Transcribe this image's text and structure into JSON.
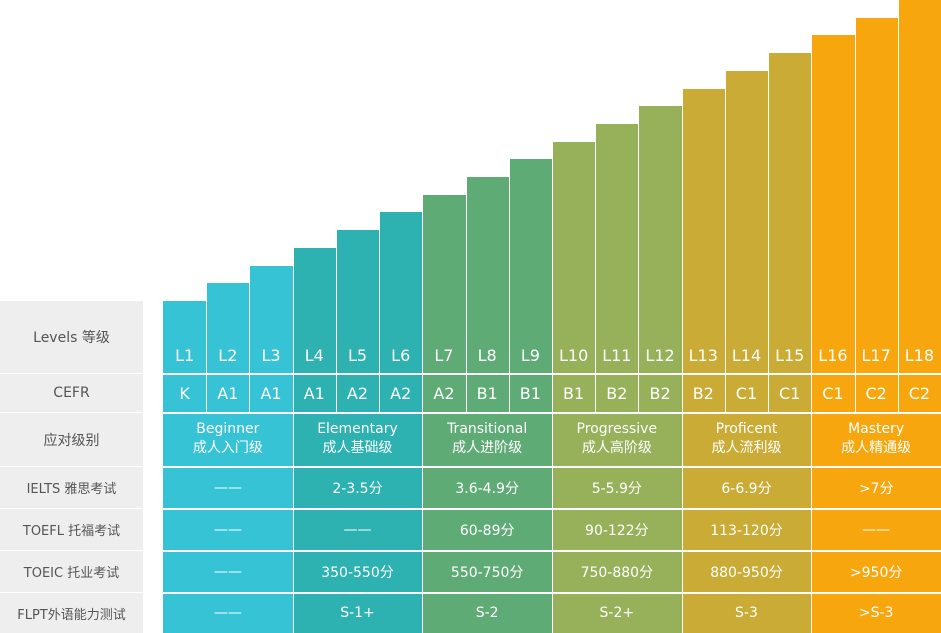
{
  "chart_data": {
    "type": "bar",
    "categories": [
      "L1",
      "L2",
      "L3",
      "L4",
      "L5",
      "L6",
      "L7",
      "L8",
      "L9",
      "L10",
      "L11",
      "L12",
      "L13",
      "L14",
      "L15",
      "L16",
      "L17",
      "L18"
    ],
    "values": [
      1,
      2,
      3,
      4,
      5,
      6,
      7,
      8,
      9,
      10,
      11,
      12,
      13,
      14,
      15,
      16,
      17,
      18
    ],
    "colors": [
      "#37c3d6",
      "#37c3d6",
      "#37c3d6",
      "#2db1b1",
      "#2db1b1",
      "#2db1b1",
      "#5fab76",
      "#5fab76",
      "#5fab76",
      "#97b15b",
      "#97b15b",
      "#97b15b",
      "#c9ab36",
      "#c9ab36",
      "#c9ab36",
      "#f7a60e",
      "#f7a60e",
      "#f7a60e"
    ],
    "cefr": [
      "K",
      "A1",
      "A1",
      "A1",
      "A2",
      "A2",
      "A2",
      "B1",
      "B1",
      "B1",
      "B2",
      "B2",
      "B2",
      "C1",
      "C1",
      "C1",
      "C2",
      "C2"
    ]
  },
  "row_labels": {
    "levels": "Levels 等级",
    "cefr": "CEFR",
    "band": "应对级别",
    "ielts": "IELTS 雅思考试",
    "toefl": "TOEFL 托福考试",
    "toeic": "TOEIC 托业考试",
    "flpt": "FLPT外语能力测试"
  },
  "bands": [
    {
      "en": "Beginner",
      "zh": "成人入门级",
      "color": "#37c3d6",
      "ielts": "——",
      "toefl": "——",
      "toeic": "——",
      "flpt": "——"
    },
    {
      "en": "Elementary",
      "zh": "成人基础级",
      "color": "#2db1b1",
      "ielts": "2-3.5分",
      "toefl": "——",
      "toeic": "350-550分",
      "flpt": "S-1+"
    },
    {
      "en": "Transitional",
      "zh": "成人进阶级",
      "color": "#5fab76",
      "ielts": "3.6-4.9分",
      "toefl": "60-89分",
      "toeic": "550-750分",
      "flpt": "S-2"
    },
    {
      "en": "Progressive",
      "zh": "成人高阶级",
      "color": "#97b15b",
      "ielts": "5-5.9分",
      "toefl": "90-122分",
      "toeic": "750-880分",
      "flpt": "S-2+"
    },
    {
      "en": "Proficent",
      "zh": "成人流利级",
      "color": "#c9ab36",
      "ielts": "6-6.9分",
      "toefl": "113-120分",
      "toeic": "880-950分",
      "flpt": "S-3"
    },
    {
      "en": "Mastery",
      "zh": "成人精通级",
      "color": "#f7a60e",
      "ielts": ">7分",
      "toefl": "——",
      "toeic": ">950分",
      "flpt": ">S-3"
    }
  ]
}
